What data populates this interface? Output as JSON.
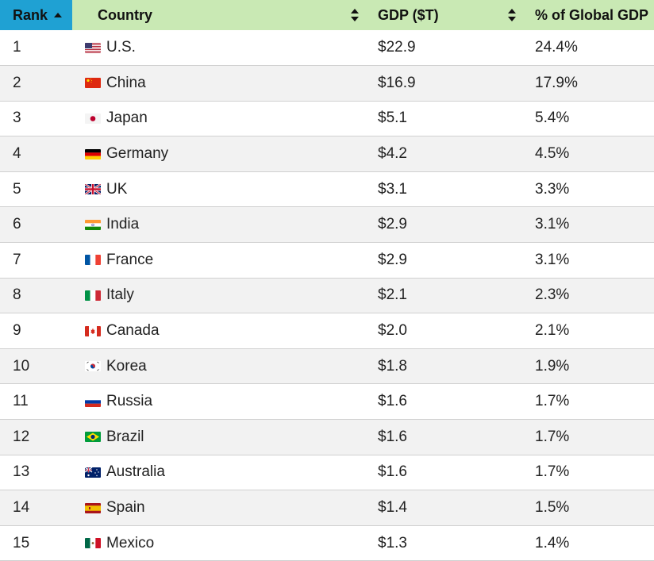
{
  "chart_data": {
    "type": "table",
    "columns": [
      "Rank",
      "Country",
      "GDP ($T)",
      "% of Global GDP"
    ],
    "sorted_by": "Rank",
    "sort_direction": "ascending",
    "rows": [
      {
        "rank": "1",
        "country": "U.S.",
        "flag": "us-flag-icon",
        "gdp": "$22.9",
        "pct": "24.4%"
      },
      {
        "rank": "2",
        "country": "China",
        "flag": "china-flag-icon",
        "gdp": "$16.9",
        "pct": "17.9%"
      },
      {
        "rank": "3",
        "country": "Japan",
        "flag": "japan-flag-icon",
        "gdp": "$5.1",
        "pct": "5.4%"
      },
      {
        "rank": "4",
        "country": "Germany",
        "flag": "germany-flag-icon",
        "gdp": "$4.2",
        "pct": "4.5%"
      },
      {
        "rank": "5",
        "country": "UK",
        "flag": "uk-flag-icon",
        "gdp": "$3.1",
        "pct": "3.3%"
      },
      {
        "rank": "6",
        "country": "India",
        "flag": "india-flag-icon",
        "gdp": "$2.9",
        "pct": "3.1%"
      },
      {
        "rank": "7",
        "country": "France",
        "flag": "france-flag-icon",
        "gdp": "$2.9",
        "pct": "3.1%"
      },
      {
        "rank": "8",
        "country": "Italy",
        "flag": "italy-flag-icon",
        "gdp": "$2.1",
        "pct": "2.3%"
      },
      {
        "rank": "9",
        "country": "Canada",
        "flag": "canada-flag-icon",
        "gdp": "$2.0",
        "pct": "2.1%"
      },
      {
        "rank": "10",
        "country": "Korea",
        "flag": "korea-flag-icon",
        "gdp": "$1.8",
        "pct": "1.9%"
      },
      {
        "rank": "11",
        "country": "Russia",
        "flag": "russia-flag-icon",
        "gdp": "$1.6",
        "pct": "1.7%"
      },
      {
        "rank": "12",
        "country": "Brazil",
        "flag": "brazil-flag-icon",
        "gdp": "$1.6",
        "pct": "1.7%"
      },
      {
        "rank": "13",
        "country": "Australia",
        "flag": "australia-flag-icon",
        "gdp": "$1.6",
        "pct": "1.7%"
      },
      {
        "rank": "14",
        "country": "Spain",
        "flag": "spain-flag-icon",
        "gdp": "$1.4",
        "pct": "1.5%"
      },
      {
        "rank": "15",
        "country": "Mexico",
        "flag": "mexico-flag-icon",
        "gdp": "$1.3",
        "pct": "1.4%"
      }
    ]
  },
  "colors": {
    "rank_header": "#1fa1d3",
    "header": "#c9e9b4",
    "row_alt": "#f2f2f2"
  }
}
